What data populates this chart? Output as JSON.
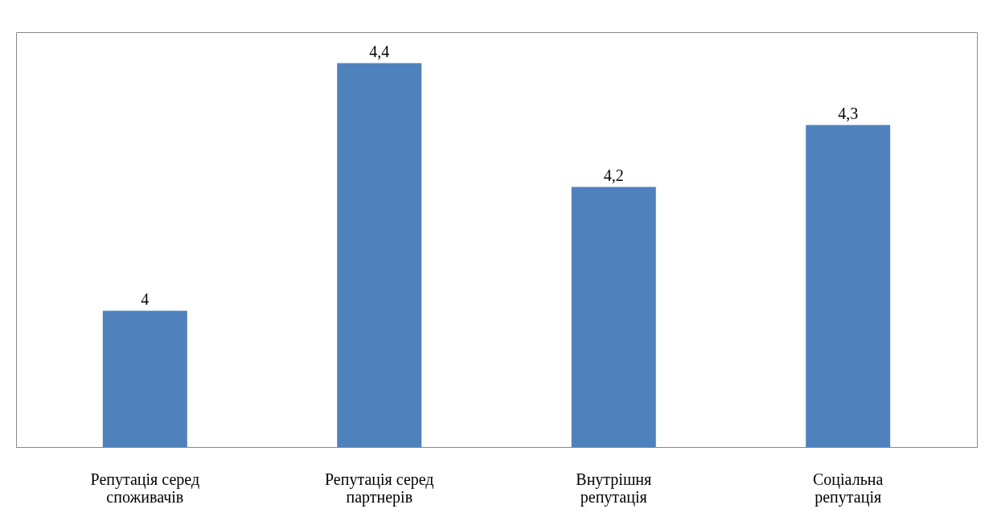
{
  "chart_data": {
    "type": "bar",
    "categories": [
      "Репутація серед споживачів",
      "Репутація серед партнерів",
      "Внутрішня репутація",
      "Соціальна репутація"
    ],
    "values": [
      4,
      4.4,
      4.2,
      4.3
    ],
    "value_labels": [
      "4",
      "4,4",
      "4,2",
      "4,3"
    ],
    "color": "#4f81bd",
    "ylim": [
      3.78,
      4.45
    ],
    "tick_labels": "x",
    "grid": false
  }
}
